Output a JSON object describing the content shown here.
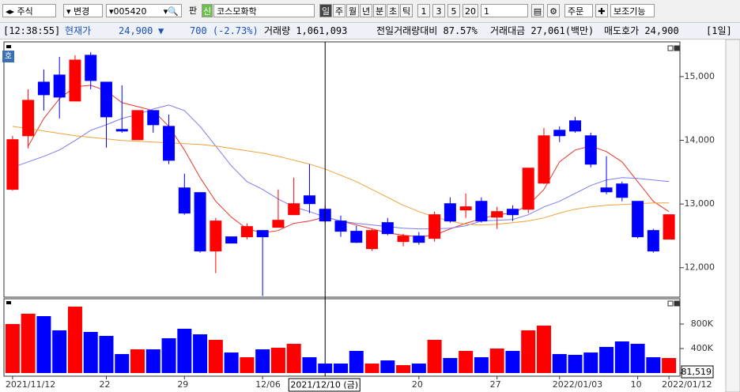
{
  "toolbar": {
    "market": "주식",
    "change": "변경",
    "code": "005420",
    "pan": "판",
    "badge": "신",
    "name": "코스모화학",
    "periods": [
      "일",
      "주",
      "월",
      "년",
      "분",
      "초",
      "틱"
    ],
    "intervals": [
      "1",
      "3",
      "5",
      "20"
    ],
    "count": "1",
    "order": "주문",
    "aux": "보조기능"
  },
  "quote": {
    "time": "[12:38:55]",
    "price_label": "현재가",
    "price": "24,900",
    "direction": "▼",
    "change": "700 (-2.73%)",
    "volume": "거래량 1,061,093",
    "prev_ratio": "전일거래량대비 87.57%",
    "amount": "거래대금 27,061(백만)",
    "ask": "매도호가 24,900",
    "period": "[1일]"
  },
  "chart_badge": "호",
  "chart_data": [
    {
      "type": "candlestick",
      "categories": [
        "2021/11/12",
        null,
        null,
        null,
        null,
        null,
        "22",
        null,
        null,
        null,
        null,
        "29",
        null,
        null,
        null,
        null,
        "12/06",
        null,
        null,
        null,
        null,
        null,
        null,
        null,
        null,
        null,
        "20",
        null,
        null,
        null,
        null,
        "27",
        null,
        null,
        null,
        "2022/01/03",
        null,
        null,
        null,
        null,
        "10",
        null,
        "2022/01/12"
      ],
      "open": [
        13230,
        14071,
        14913,
        15025,
        14616,
        15335,
        14913,
        14170,
        14009,
        14467,
        14219,
        13253,
        13179,
        12262,
        12485,
        12485,
        12584,
        12634,
        12832,
        13129,
        12918,
        12733,
        12572,
        12299,
        12708,
        12410,
        12497,
        12460,
        13005,
        12906,
        13042,
        12794,
        12918,
        12918,
        13327,
        14158,
        14306,
        14071,
        13253,
        13315,
        13042,
        12584,
        12448
      ],
      "high": [
        14070,
        14802,
        15112,
        15310,
        15335,
        15384,
        14913,
        14864,
        14467,
        14467,
        14405,
        13476,
        13179,
        12782,
        12485,
        12696,
        12584,
        13228,
        13414,
        13625,
        12980,
        12819,
        12658,
        12609,
        12782,
        12534,
        12559,
        12881,
        13104,
        13166,
        13104,
        12956,
        12980,
        13563,
        14195,
        14219,
        14368,
        14120,
        13749,
        13352,
        13042,
        12609,
        12832
      ],
      "low": [
        13210,
        13873,
        14467,
        14343,
        14616,
        14802,
        13885,
        14120,
        14009,
        14120,
        13625,
        12832,
        12237,
        11915,
        12386,
        12448,
        11556,
        12634,
        12832,
        12857,
        12708,
        12485,
        12386,
        12262,
        12510,
        12336,
        12361,
        12410,
        12708,
        12782,
        12708,
        12609,
        12733,
        12857,
        13315,
        13972,
        14120,
        13575,
        13154,
        13042,
        12460,
        12237,
        12448
      ],
      "close": [
        14010,
        14628,
        14715,
        14678,
        15260,
        14938,
        14368,
        14145,
        14467,
        14244,
        13686,
        12857,
        12262,
        12733,
        12386,
        12646,
        12485,
        12745,
        13005,
        13005,
        12733,
        12572,
        12398,
        12584,
        12534,
        12497,
        12398,
        12832,
        12733,
        12956,
        12733,
        12881,
        12832,
        13563,
        14071,
        14071,
        14145,
        13625,
        13191,
        13104,
        12485,
        12262,
        12832
      ],
      "up_color": "#ff0000",
      "down_color": "#0000ff",
      "series": [
        {
          "color": "#e8362a",
          "values": [
            null,
            13910,
            14343,
            14653,
            14839,
            14864,
            14777,
            14591,
            14529,
            14467,
            14219,
            13848,
            13414,
            13042,
            12794,
            12609,
            12547,
            12584,
            12696,
            12733,
            12794,
            12733,
            12671,
            12609,
            12547,
            12510,
            12485,
            12510,
            12609,
            12696,
            12770,
            12832,
            12857,
            12980,
            13228,
            13662,
            13848,
            13910,
            13823,
            13662,
            13352,
            13042,
            12881
          ]
        },
        {
          "color": "#7b7bf0",
          "values": [
            13575,
            13662,
            13749,
            13848,
            13996,
            14157,
            14244,
            14343,
            14405,
            14492,
            14554,
            14467,
            14219,
            13910,
            13600,
            13352,
            13228,
            13079,
            12955,
            12881,
            12794,
            12733,
            12696,
            12671,
            12646,
            12621,
            12609,
            12609,
            12621,
            12658,
            12733,
            12745,
            12757,
            12832,
            12955,
            13042,
            13166,
            13290,
            13377,
            13414,
            13402,
            13377,
            13352
          ]
        },
        {
          "color": "#f0a23c",
          "values": [
            14219,
            14182,
            14145,
            14108,
            14071,
            14046,
            14021,
            13996,
            13984,
            13972,
            13959,
            13947,
            13934,
            13910,
            13872,
            13835,
            13798,
            13749,
            13687,
            13625,
            13550,
            13451,
            13352,
            13228,
            13104,
            12980,
            12881,
            12794,
            12733,
            12683,
            12671,
            12683,
            12708,
            12733,
            12782,
            12857,
            12919,
            12955,
            12980,
            12992,
            13005,
            13017,
            13017
          ]
        }
      ],
      "ylim": [
        11550,
        15520
      ],
      "yticks": [
        {
          "value": 12000,
          "label": "12,000"
        },
        {
          "value": 13000,
          "label": "13,000"
        },
        {
          "value": 14000,
          "label": "14,000"
        },
        {
          "value": 15000,
          "label": "15,000"
        }
      ],
      "crosshair_label": "2021/12/10 (금)"
    },
    {
      "type": "bar",
      "values": [
        800000,
        968000,
        929000,
        697000,
        1084000,
        671000,
        606000,
        310000,
        387000,
        387000,
        568000,
        723000,
        632000,
        542000,
        335000,
        258000,
        387000,
        413000,
        477000,
        258000,
        155000,
        155000,
        361000,
        155000,
        206000,
        129000,
        155000,
        542000,
        245000,
        361000,
        258000,
        400000,
        361000,
        697000,
        774000,
        310000,
        297000,
        335000,
        426000,
        516000,
        477000,
        258000,
        245000
      ],
      "ylim": [
        0,
        1187000
      ],
      "yticks": [
        {
          "value": 0,
          "label": "0K"
        },
        {
          "value": 400000,
          "label": "400K"
        },
        {
          "value": 800000,
          "label": "800K"
        }
      ],
      "last_label": "81,519"
    }
  ]
}
